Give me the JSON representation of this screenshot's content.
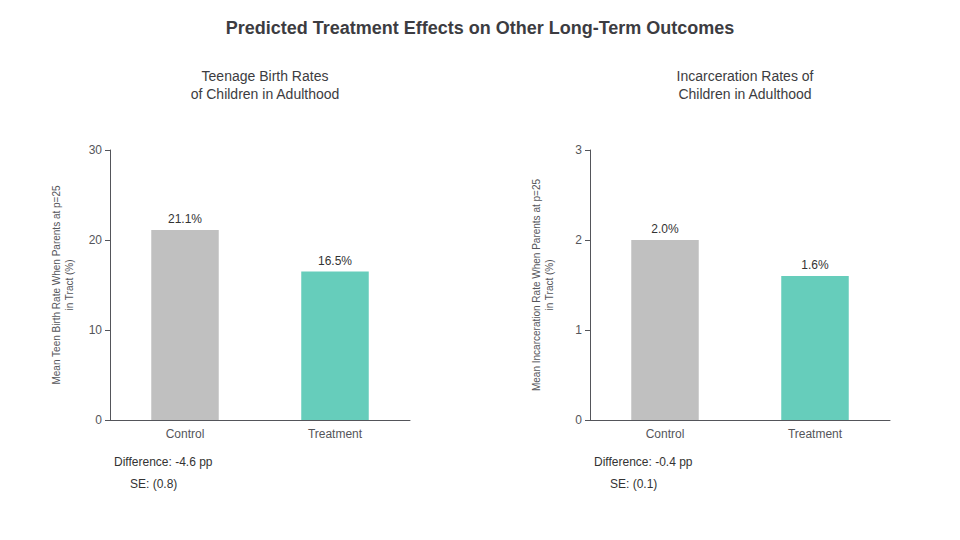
{
  "title": "Predicted Treatment Effects on Other Long-Term Outcomes",
  "chart_data": [
    {
      "type": "bar",
      "title": "Teenage Birth Rates\nof Children in Adulthood",
      "categories": [
        "Control",
        "Treatment"
      ],
      "values": [
        21.1,
        16.5
      ],
      "value_labels": [
        "21.1%",
        "16.5%"
      ],
      "data_labels": true,
      "colors": [
        "#c0c0c0",
        "#66cdbb"
      ],
      "ylabel": "Mean Teen Birth Rate When Parents at p=25\nin Tract (%)",
      "ylim": [
        0,
        30
      ],
      "yticks": [
        0,
        10,
        20,
        30
      ],
      "grid": false,
      "annotations": [
        "Difference: -4.6 pp",
        "SE: (0.8)"
      ]
    },
    {
      "type": "bar",
      "title": "Incarceration Rates of\nChildren in Adulthood",
      "categories": [
        "Control",
        "Treatment"
      ],
      "values": [
        2.0,
        1.6
      ],
      "value_labels": [
        "2.0%",
        "1.6%"
      ],
      "data_labels": true,
      "colors": [
        "#c0c0c0",
        "#66cdbb"
      ],
      "ylabel": "Mean Incarceration Rate When Parents at p=25\nin Tract (%)",
      "ylim": [
        0,
        3
      ],
      "yticks": [
        0,
        1,
        2,
        3
      ],
      "grid": false,
      "annotations": [
        "Difference: -0.4 pp",
        "SE: (0.1)"
      ]
    }
  ]
}
